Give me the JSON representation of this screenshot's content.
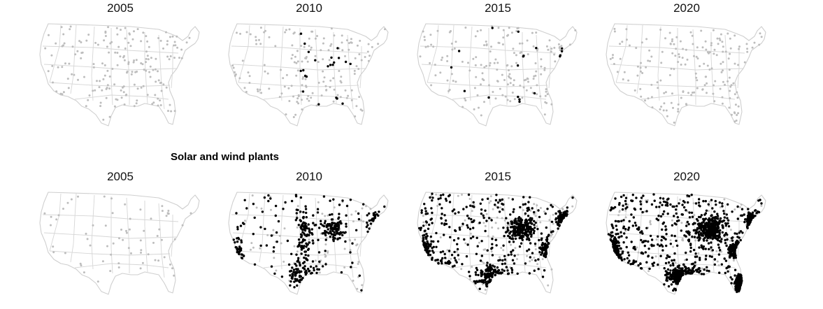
{
  "row1": {
    "panels": [
      {
        "year": "2005",
        "total_dots": 190,
        "new_dots": 0,
        "new_regions": []
      },
      {
        "year": "2010",
        "total_dots": 190,
        "new_dots": 22,
        "new_regions": [
          "midwest",
          "plains",
          "south"
        ]
      },
      {
        "year": "2015",
        "total_dots": 190,
        "new_dots": 18,
        "new_regions": [
          "midwest",
          "south",
          "northeast"
        ]
      },
      {
        "year": "2020",
        "total_dots": 190,
        "new_dots": 0,
        "new_regions": []
      }
    ]
  },
  "row2": {
    "title": "Solar and wind plants",
    "panels": [
      {
        "year": "2005",
        "total_dots": 70,
        "new_dots": 0,
        "new_regions": []
      },
      {
        "year": "2010",
        "total_dots": 520,
        "new_dots": 430,
        "new_regions": [
          "california",
          "plains",
          "midwest",
          "northeast",
          "texas"
        ]
      },
      {
        "year": "2015",
        "total_dots": 900,
        "new_dots": 780,
        "new_regions": [
          "california",
          "southwest",
          "midwest",
          "northeast",
          "carolina",
          "texas"
        ]
      },
      {
        "year": "2020",
        "total_dots": 1500,
        "new_dots": 1400,
        "new_regions": [
          "california",
          "southwest",
          "midwest",
          "northeast",
          "carolina",
          "texas",
          "florida"
        ]
      }
    ]
  },
  "colors": {
    "new": "#000000",
    "existing": "#bdbdbd",
    "outline": "#cfcfcf"
  }
}
